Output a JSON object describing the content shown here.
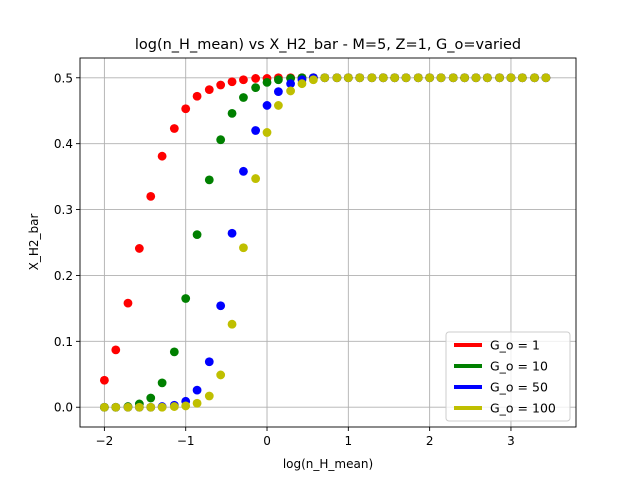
{
  "chart_data": {
    "type": "scatter",
    "title": "log(n_H_mean) vs X_H2_bar - M=5, Z=1, G_o=varied",
    "xlabel": "log(n_H_mean)",
    "ylabel": "X_H2_bar",
    "xlim": [
      -2.3,
      3.8
    ],
    "ylim": [
      -0.03,
      0.53
    ],
    "xticks": [
      -2,
      -1,
      0,
      1,
      2,
      3
    ],
    "xtick_labels": [
      "−2",
      "−1",
      "0",
      "1",
      "2",
      "3"
    ],
    "yticks": [
      0.0,
      0.1,
      0.2,
      0.3,
      0.4,
      0.5
    ],
    "ytick_labels": [
      "0.0",
      "0.1",
      "0.2",
      "0.3",
      "0.4",
      "0.5"
    ],
    "grid": true,
    "legend_position": "lower-right",
    "x": [
      -2.0,
      -1.86,
      -1.71,
      -1.57,
      -1.43,
      -1.29,
      -1.14,
      -1.0,
      -0.86,
      -0.71,
      -0.57,
      -0.43,
      -0.29,
      -0.14,
      0.0,
      0.14,
      0.29,
      0.43,
      0.57,
      0.71,
      0.86,
      1.0,
      1.14,
      1.29,
      1.43,
      1.57,
      1.71,
      1.86,
      2.0,
      2.14,
      2.29,
      2.43,
      2.57,
      2.71,
      2.86,
      3.0,
      3.14,
      3.29,
      3.43
    ],
    "series": [
      {
        "name": "G_o = 1",
        "color": "#ff0000",
        "values": [
          0.041,
          0.087,
          0.158,
          0.241,
          0.32,
          0.381,
          0.423,
          0.453,
          0.472,
          0.482,
          0.489,
          0.494,
          0.497,
          0.499,
          0.499,
          0.5,
          0.5,
          0.5,
          0.5,
          0.5,
          0.5,
          0.5,
          0.5,
          0.5,
          0.5,
          0.5,
          0.5,
          0.5,
          0.5,
          0.5,
          0.5,
          0.5,
          0.5,
          0.5,
          0.5,
          0.5,
          0.5,
          0.5,
          0.5
        ]
      },
      {
        "name": "G_o = 10",
        "color": "#008000",
        "values": [
          0.0,
          0.0,
          0.001,
          0.005,
          0.014,
          0.037,
          0.084,
          0.165,
          0.262,
          0.345,
          0.406,
          0.446,
          0.47,
          0.485,
          0.493,
          0.497,
          0.499,
          0.5,
          0.5,
          0.5,
          0.5,
          0.5,
          0.5,
          0.5,
          0.5,
          0.5,
          0.5,
          0.5,
          0.5,
          0.5,
          0.5,
          0.5,
          0.5,
          0.5,
          0.5,
          0.5,
          0.5,
          0.5,
          0.5
        ]
      },
      {
        "name": "G_o = 50",
        "color": "#0000ff",
        "values": [
          0.0,
          0.0,
          0.0,
          0.0,
          0.0,
          0.001,
          0.003,
          0.009,
          0.026,
          0.069,
          0.154,
          0.264,
          0.358,
          0.42,
          0.458,
          0.479,
          0.491,
          0.497,
          0.5,
          0.5,
          0.5,
          0.5,
          0.5,
          0.5,
          0.5,
          0.5,
          0.5,
          0.5,
          0.5,
          0.5,
          0.5,
          0.5,
          0.5,
          0.5,
          0.5,
          0.5,
          0.5,
          0.5,
          0.5
        ]
      },
      {
        "name": "G_o = 100",
        "color": "#bfbf00",
        "values": [
          0.0,
          0.0,
          0.0,
          0.0,
          0.0,
          0.0,
          0.001,
          0.002,
          0.006,
          0.017,
          0.049,
          0.126,
          0.242,
          0.347,
          0.417,
          0.458,
          0.48,
          0.491,
          0.497,
          0.5,
          0.5,
          0.5,
          0.5,
          0.5,
          0.5,
          0.5,
          0.5,
          0.5,
          0.5,
          0.5,
          0.5,
          0.5,
          0.5,
          0.5,
          0.5,
          0.5,
          0.5,
          0.5,
          0.5
        ]
      }
    ]
  }
}
